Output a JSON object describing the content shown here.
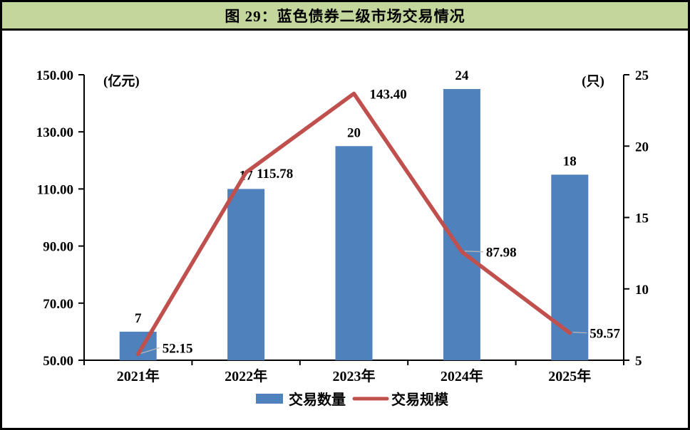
{
  "figure": {
    "title": "图 29：蓝色债券二级市场交易情况"
  },
  "colors": {
    "title_bg": "#c3d69b",
    "frame_border": "#000000",
    "bar": "#4f81bd",
    "line": "#c0504d",
    "leader": "#b7b7b7",
    "axis": "#000000",
    "text": "#000000"
  },
  "chart_data": {
    "type": "bar",
    "subtype": "bar+line combo, dual axis",
    "title": "图 29：蓝色债券二级市场交易情况",
    "categories": [
      "2021年",
      "2022年",
      "2023年",
      "2024年",
      "2025年"
    ],
    "series": [
      {
        "name": "交易数量",
        "type": "bar",
        "axis": "right",
        "values": [
          7,
          17,
          20,
          24,
          18
        ],
        "labels": [
          "7",
          "17",
          "20",
          "24",
          "18"
        ]
      },
      {
        "name": "交易规模",
        "type": "line",
        "axis": "left",
        "values": [
          52.15,
          115.78,
          143.4,
          87.98,
          59.57
        ],
        "labels": [
          "52.15",
          "115.78",
          "143.40",
          "87.98",
          "59.57"
        ],
        "label_hints": [
          {
            "dx": 34,
            "dy": -2,
            "leader": true
          },
          {
            "dx": 15,
            "dy": 8,
            "leader": false
          },
          {
            "dx": 22,
            "dy": 7,
            "leader": false
          },
          {
            "dx": 34,
            "dy": 7,
            "leader": true
          },
          {
            "dx": 28,
            "dy": 7,
            "leader": true
          }
        ]
      }
    ],
    "left_axis": {
      "unit_label": "(亿元)",
      "min": 50,
      "max": 150,
      "ticks": [
        "150.00",
        "130.00",
        "110.00",
        "90.00",
        "70.00",
        "50.00"
      ]
    },
    "right_axis": {
      "unit_label": "(只)",
      "min": 5,
      "max": 25,
      "ticks": [
        "25",
        "20",
        "15",
        "10",
        "5"
      ]
    },
    "legend": [
      {
        "label": "交易数量",
        "swatch": "bar"
      },
      {
        "label": "交易规模",
        "swatch": "line"
      }
    ],
    "grid": false,
    "legend_position": "bottom-center"
  }
}
